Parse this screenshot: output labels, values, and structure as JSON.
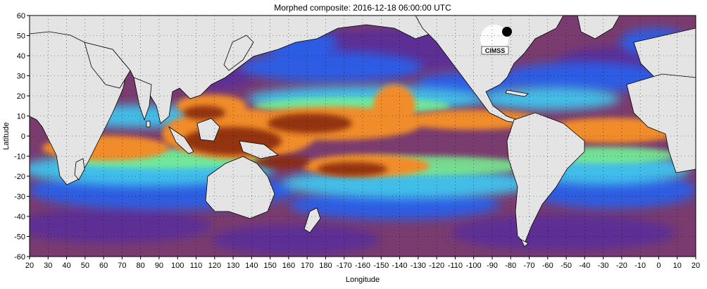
{
  "title": "Morphed composite: 2016-12-18 06:00:00 UTC",
  "x_axis": {
    "label": "Longitude",
    "ticks": [
      "20",
      "30",
      "40",
      "50",
      "60",
      "70",
      "80",
      "90",
      "100",
      "110",
      "120",
      "130",
      "140",
      "150",
      "160",
      "170",
      "180",
      "-170",
      "-160",
      "-150",
      "-140",
      "-130",
      "-120",
      "-110",
      "-100",
      "-90",
      "-80",
      "-70",
      "-60",
      "-50",
      "-40",
      "-30",
      "-20",
      "-10",
      "0",
      "10",
      "20"
    ]
  },
  "y_axis": {
    "label": "Latitude",
    "ticks": [
      "60",
      "50",
      "40",
      "30",
      "20",
      "10",
      "0",
      "-10",
      "-20",
      "-30",
      "-40",
      "-50",
      "-60"
    ]
  },
  "logo": {
    "text": "CIMSS"
  },
  "colors": {
    "land": "#e4e4e4",
    "very_low": "#7a3c6e",
    "low": "#5a2d9a",
    "mid_low": "#2a5ee8",
    "mid": "#3fc4ee",
    "mid_high": "#78f090",
    "high": "#f08c2a",
    "very_high": "#8a2a0a"
  },
  "grid": "dotted"
}
